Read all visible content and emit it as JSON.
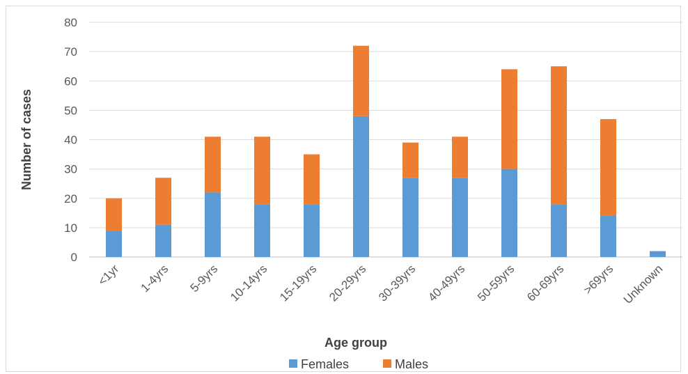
{
  "chart_data": {
    "type": "bar",
    "stacked": true,
    "title": "",
    "xlabel": "Age group",
    "ylabel": "Number of cases",
    "ylim": [
      0,
      80
    ],
    "yticks": [
      0,
      10,
      20,
      30,
      40,
      50,
      60,
      70,
      80
    ],
    "grid": true,
    "legend_position": "bottom",
    "categories": [
      "<1yr",
      "1-4yrs",
      "5-9yrs",
      "10-14yrs",
      "15-19yrs",
      "20-29yrs",
      "30-39yrs",
      "40-49yrs",
      "50-59yrs",
      "60-69yrs",
      ">69yrs",
      "Unknown"
    ],
    "series": [
      {
        "name": "Females",
        "color": "#5b9bd5",
        "values": [
          9,
          11,
          22,
          18,
          18,
          48,
          27,
          27,
          30,
          18,
          14,
          2
        ]
      },
      {
        "name": "Males",
        "color": "#ed7d31",
        "values": [
          11,
          16,
          19,
          23,
          17,
          24,
          12,
          14,
          34,
          47,
          33,
          0
        ]
      }
    ]
  }
}
